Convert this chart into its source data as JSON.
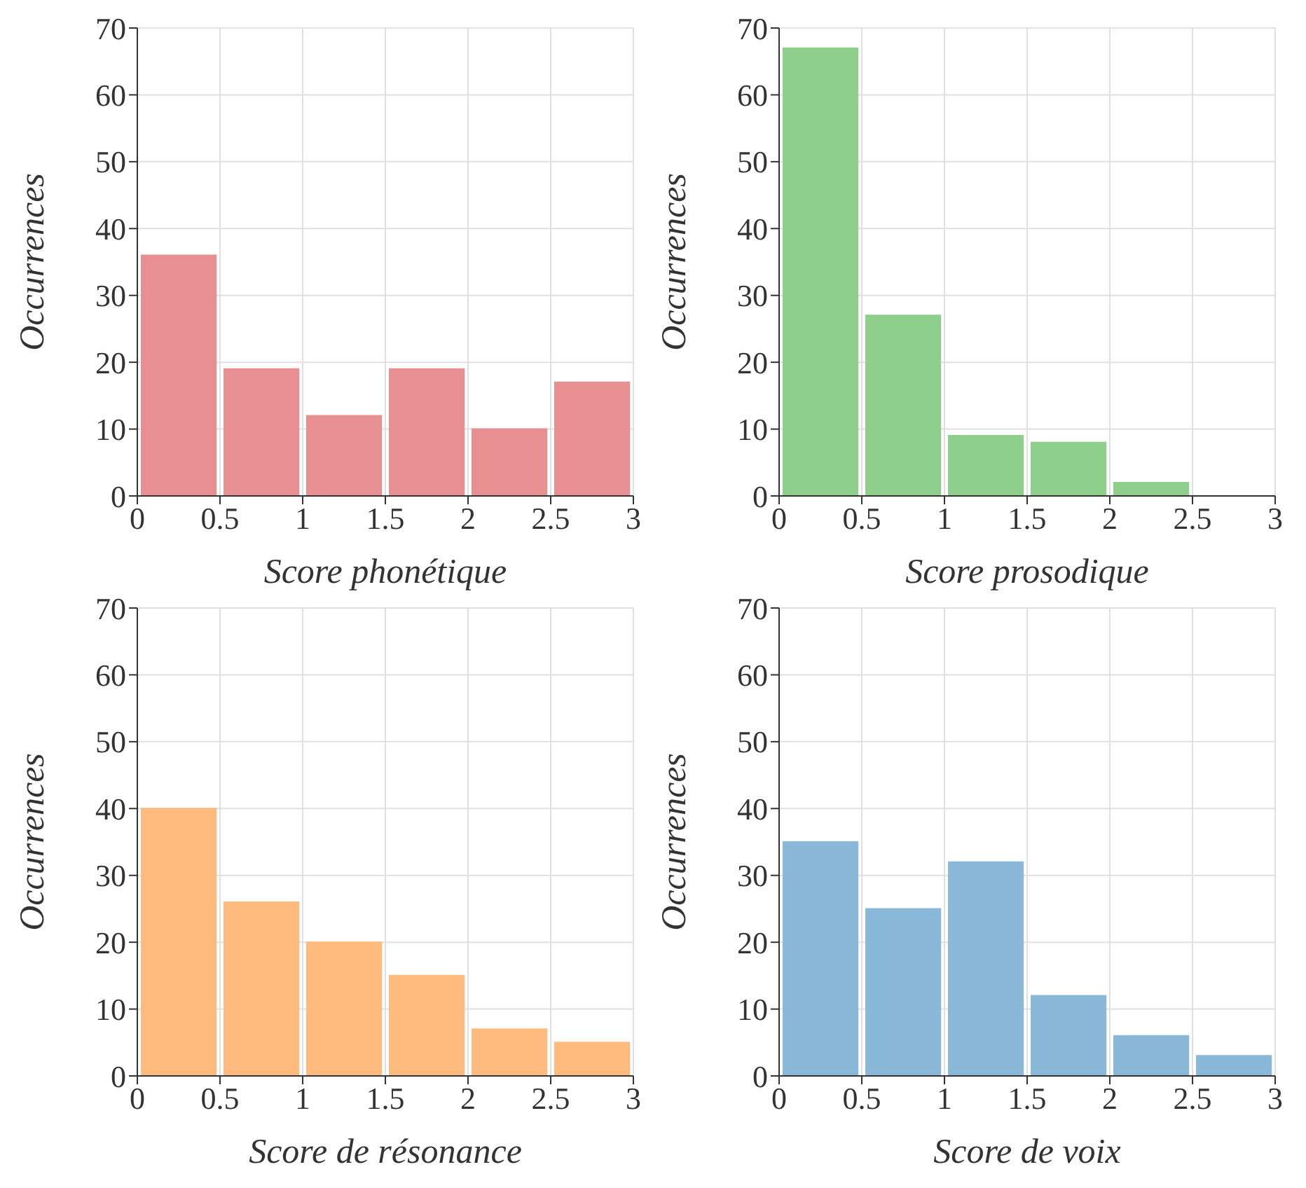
{
  "chart_data": [
    {
      "type": "histogram",
      "xlabel": "Score phonétique",
      "ylabel": "Occurrences",
      "bins": [
        0,
        0.5,
        1,
        1.5,
        2,
        2.5,
        3
      ],
      "values": [
        36,
        19,
        12,
        19,
        10,
        17
      ],
      "color": "#e88f92",
      "xlim": [
        0,
        3
      ],
      "xticks": [
        0,
        0.5,
        1,
        1.5,
        2,
        2.5,
        3
      ],
      "ylim": [
        0,
        70
      ],
      "yticks": [
        0,
        10,
        20,
        30,
        40,
        50,
        60,
        70
      ],
      "grid": true
    },
    {
      "type": "histogram",
      "xlabel": "Score prosodique",
      "ylabel": "Occurrences",
      "bins": [
        0,
        0.5,
        1,
        1.5,
        2,
        2.5,
        3
      ],
      "values": [
        67,
        27,
        9,
        8,
        2,
        0
      ],
      "color": "#8fcf8c",
      "xlim": [
        0,
        3
      ],
      "xticks": [
        0,
        0.5,
        1,
        1.5,
        2,
        2.5,
        3
      ],
      "ylim": [
        0,
        70
      ],
      "yticks": [
        0,
        10,
        20,
        30,
        40,
        50,
        60,
        70
      ],
      "grid": true
    },
    {
      "type": "histogram",
      "xlabel": "Score de résonance",
      "ylabel": "Occurrences",
      "bins": [
        0,
        0.5,
        1,
        1.5,
        2,
        2.5,
        3
      ],
      "values": [
        40,
        26,
        20,
        15,
        7,
        5
      ],
      "color": "#ffbb7d",
      "xlim": [
        0,
        3
      ],
      "xticks": [
        0,
        0.5,
        1,
        1.5,
        2,
        2.5,
        3
      ],
      "ylim": [
        0,
        70
      ],
      "yticks": [
        0,
        10,
        20,
        30,
        40,
        50,
        60,
        70
      ],
      "grid": true
    },
    {
      "type": "histogram",
      "xlabel": "Score de voix",
      "ylabel": "Occurrences",
      "bins": [
        0,
        0.5,
        1,
        1.5,
        2,
        2.5,
        3
      ],
      "values": [
        35,
        25,
        32,
        12,
        6,
        3
      ],
      "color": "#8ab8d8",
      "xlim": [
        0,
        3
      ],
      "xticks": [
        0,
        0.5,
        1,
        1.5,
        2,
        2.5,
        3
      ],
      "ylim": [
        0,
        70
      ],
      "yticks": [
        0,
        10,
        20,
        30,
        40,
        50,
        60,
        70
      ],
      "grid": true
    }
  ]
}
